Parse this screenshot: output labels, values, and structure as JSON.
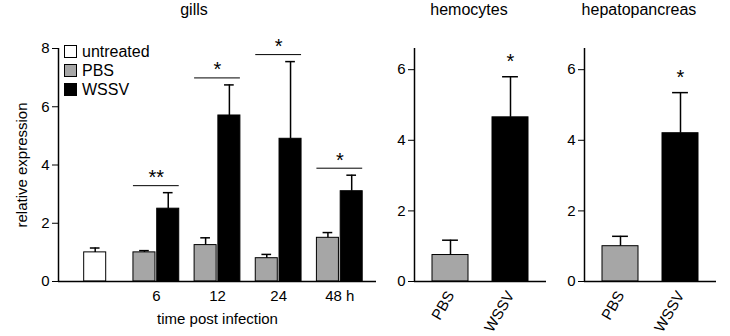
{
  "chart_data": [
    {
      "type": "bar",
      "title": "gills",
      "y_label": "relative expression",
      "x_label": "time post infection",
      "categories": [
        null,
        "6",
        "12",
        "24",
        "48 h"
      ],
      "series": [
        {
          "name": "untreated",
          "color": "#ffffff",
          "values": [
            1.0,
            null,
            null,
            null,
            null
          ],
          "errors": [
            0.15,
            null,
            null,
            null,
            null
          ]
        },
        {
          "name": "PBS",
          "color": "#a6a6a6",
          "values": [
            null,
            1.0,
            1.25,
            0.8,
            1.5
          ],
          "errors": [
            null,
            0.06,
            0.25,
            0.13,
            0.18
          ]
        },
        {
          "name": "WSSV",
          "color": "#000000",
          "values": [
            null,
            2.5,
            5.7,
            4.9,
            3.1
          ],
          "errors": [
            null,
            0.55,
            1.05,
            2.65,
            0.55
          ]
        }
      ],
      "significance": [
        null,
        "**",
        "*",
        "*",
        "*"
      ],
      "ylim": [
        0,
        8
      ],
      "yticks": [
        0,
        2,
        4,
        6,
        8
      ],
      "legend": "upper left"
    },
    {
      "type": "bar",
      "title": "hemocytes",
      "categories": [
        "PBS",
        "WSSV"
      ],
      "values": [
        0.75,
        4.65
      ],
      "errors": [
        0.42,
        1.15
      ],
      "colors": [
        "#a6a6a6",
        "#000000"
      ],
      "significance": [
        null,
        "*"
      ],
      "ylim": [
        0,
        6.6
      ],
      "yticks": [
        0,
        2,
        4,
        6
      ]
    },
    {
      "type": "bar",
      "title": "hepatopancreas",
      "categories": [
        "PBS",
        "WSSV"
      ],
      "values": [
        1.0,
        4.2
      ],
      "errors": [
        0.28,
        1.15
      ],
      "colors": [
        "#a6a6a6",
        "#000000"
      ],
      "significance": [
        null,
        "*"
      ],
      "ylim": [
        0,
        6.6
      ],
      "yticks": [
        0,
        2,
        4,
        6
      ]
    }
  ]
}
